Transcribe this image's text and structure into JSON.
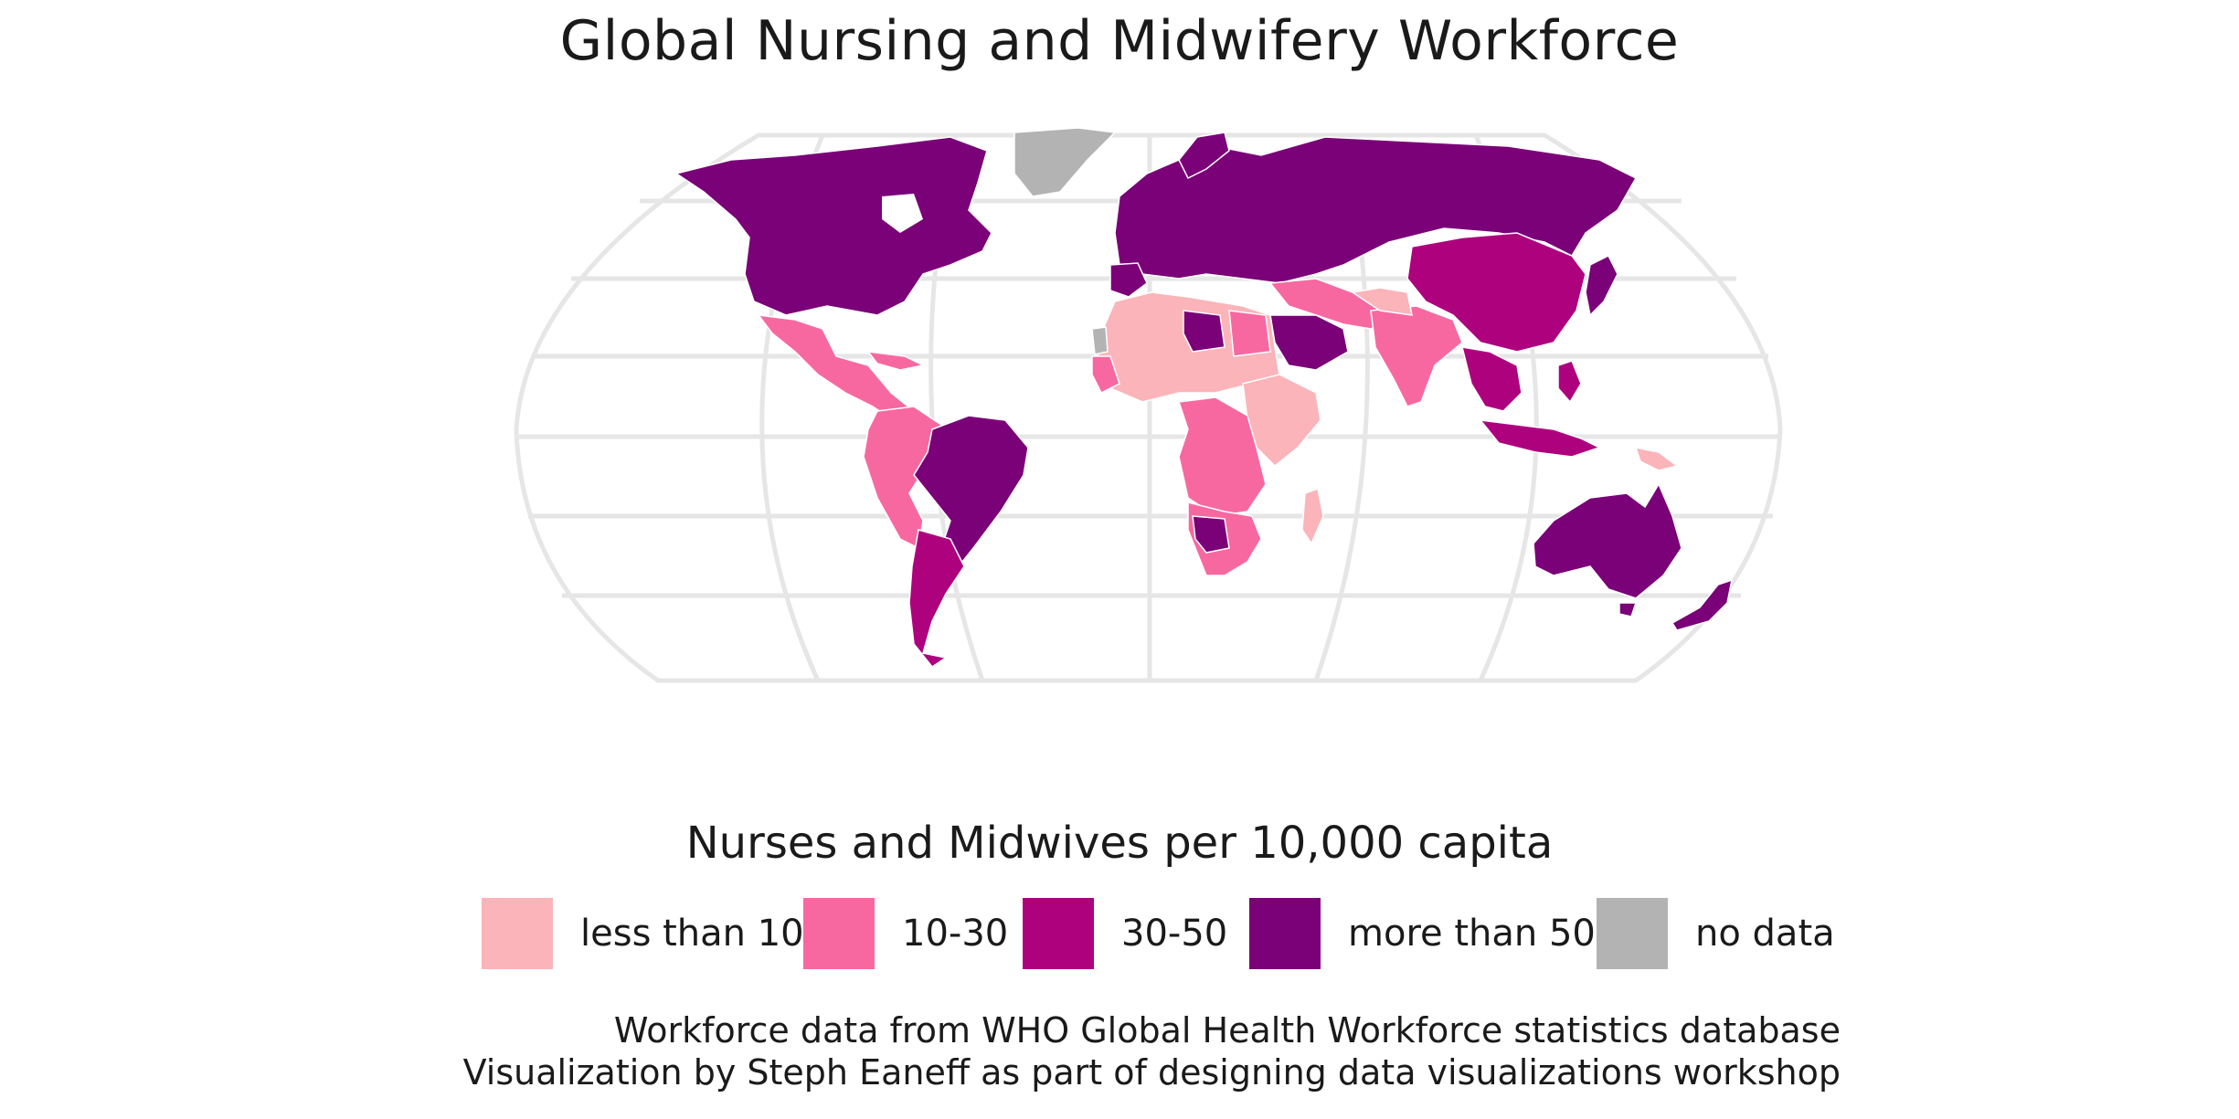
{
  "title": "Global Nursing and Midwifery Workforce",
  "legend": {
    "title": "Nurses and Midwives per 10,000 capita",
    "items": [
      {
        "label": "less than 10",
        "color": "#fbb4b9"
      },
      {
        "label": "10-30",
        "color": "#f768a1"
      },
      {
        "label": "30-50",
        "color": "#ae017e"
      },
      {
        "label": "more than 50",
        "color": "#7a0177"
      },
      {
        "label": "no data",
        "color": "#b3b3b3"
      }
    ]
  },
  "caption": {
    "line1": "Workforce data from WHO Global Health Workforce statistics database",
    "line2": "Visualization by Steph Eaneff as part of designing data visualizations workshop"
  },
  "map": {
    "projection": "Robinson",
    "graticule_color": "#e6e6e6",
    "border_color": "#ffffff",
    "regions": [
      {
        "name": "North America",
        "category": "more than 50"
      },
      {
        "name": "Greenland",
        "category": "no data"
      },
      {
        "name": "Mexico and Central America",
        "category": "10-30"
      },
      {
        "name": "Brazil",
        "category": "more than 50"
      },
      {
        "name": "Western South America",
        "category": "10-30"
      },
      {
        "name": "Southern Cone",
        "category": "30-50"
      },
      {
        "name": "Europe and Russia",
        "category": "more than 50"
      },
      {
        "name": "Central Asia",
        "category": "more than 50"
      },
      {
        "name": "China and Mongolia",
        "category": "30-50"
      },
      {
        "name": "Japan",
        "category": "more than 50"
      },
      {
        "name": "Middle East",
        "category": "10-30"
      },
      {
        "name": "Arabian Peninsula",
        "category": "more than 50"
      },
      {
        "name": "South Asia",
        "category": "10-30"
      },
      {
        "name": "Southeast Asia",
        "category": "30-50"
      },
      {
        "name": "North Africa",
        "category": "less than 10"
      },
      {
        "name": "Libya",
        "category": "more than 50"
      },
      {
        "name": "Egypt",
        "category": "10-30"
      },
      {
        "name": "West and Central Africa",
        "category": "less than 10"
      },
      {
        "name": "Central Africa",
        "category": "10-30"
      },
      {
        "name": "Southern Africa",
        "category": "10-30"
      },
      {
        "name": "Madagascar",
        "category": "less than 10"
      },
      {
        "name": "Australia",
        "category": "more than 50"
      },
      {
        "name": "New Zealand",
        "category": "more than 50"
      },
      {
        "name": "Western Sahara",
        "category": "no data"
      }
    ]
  }
}
